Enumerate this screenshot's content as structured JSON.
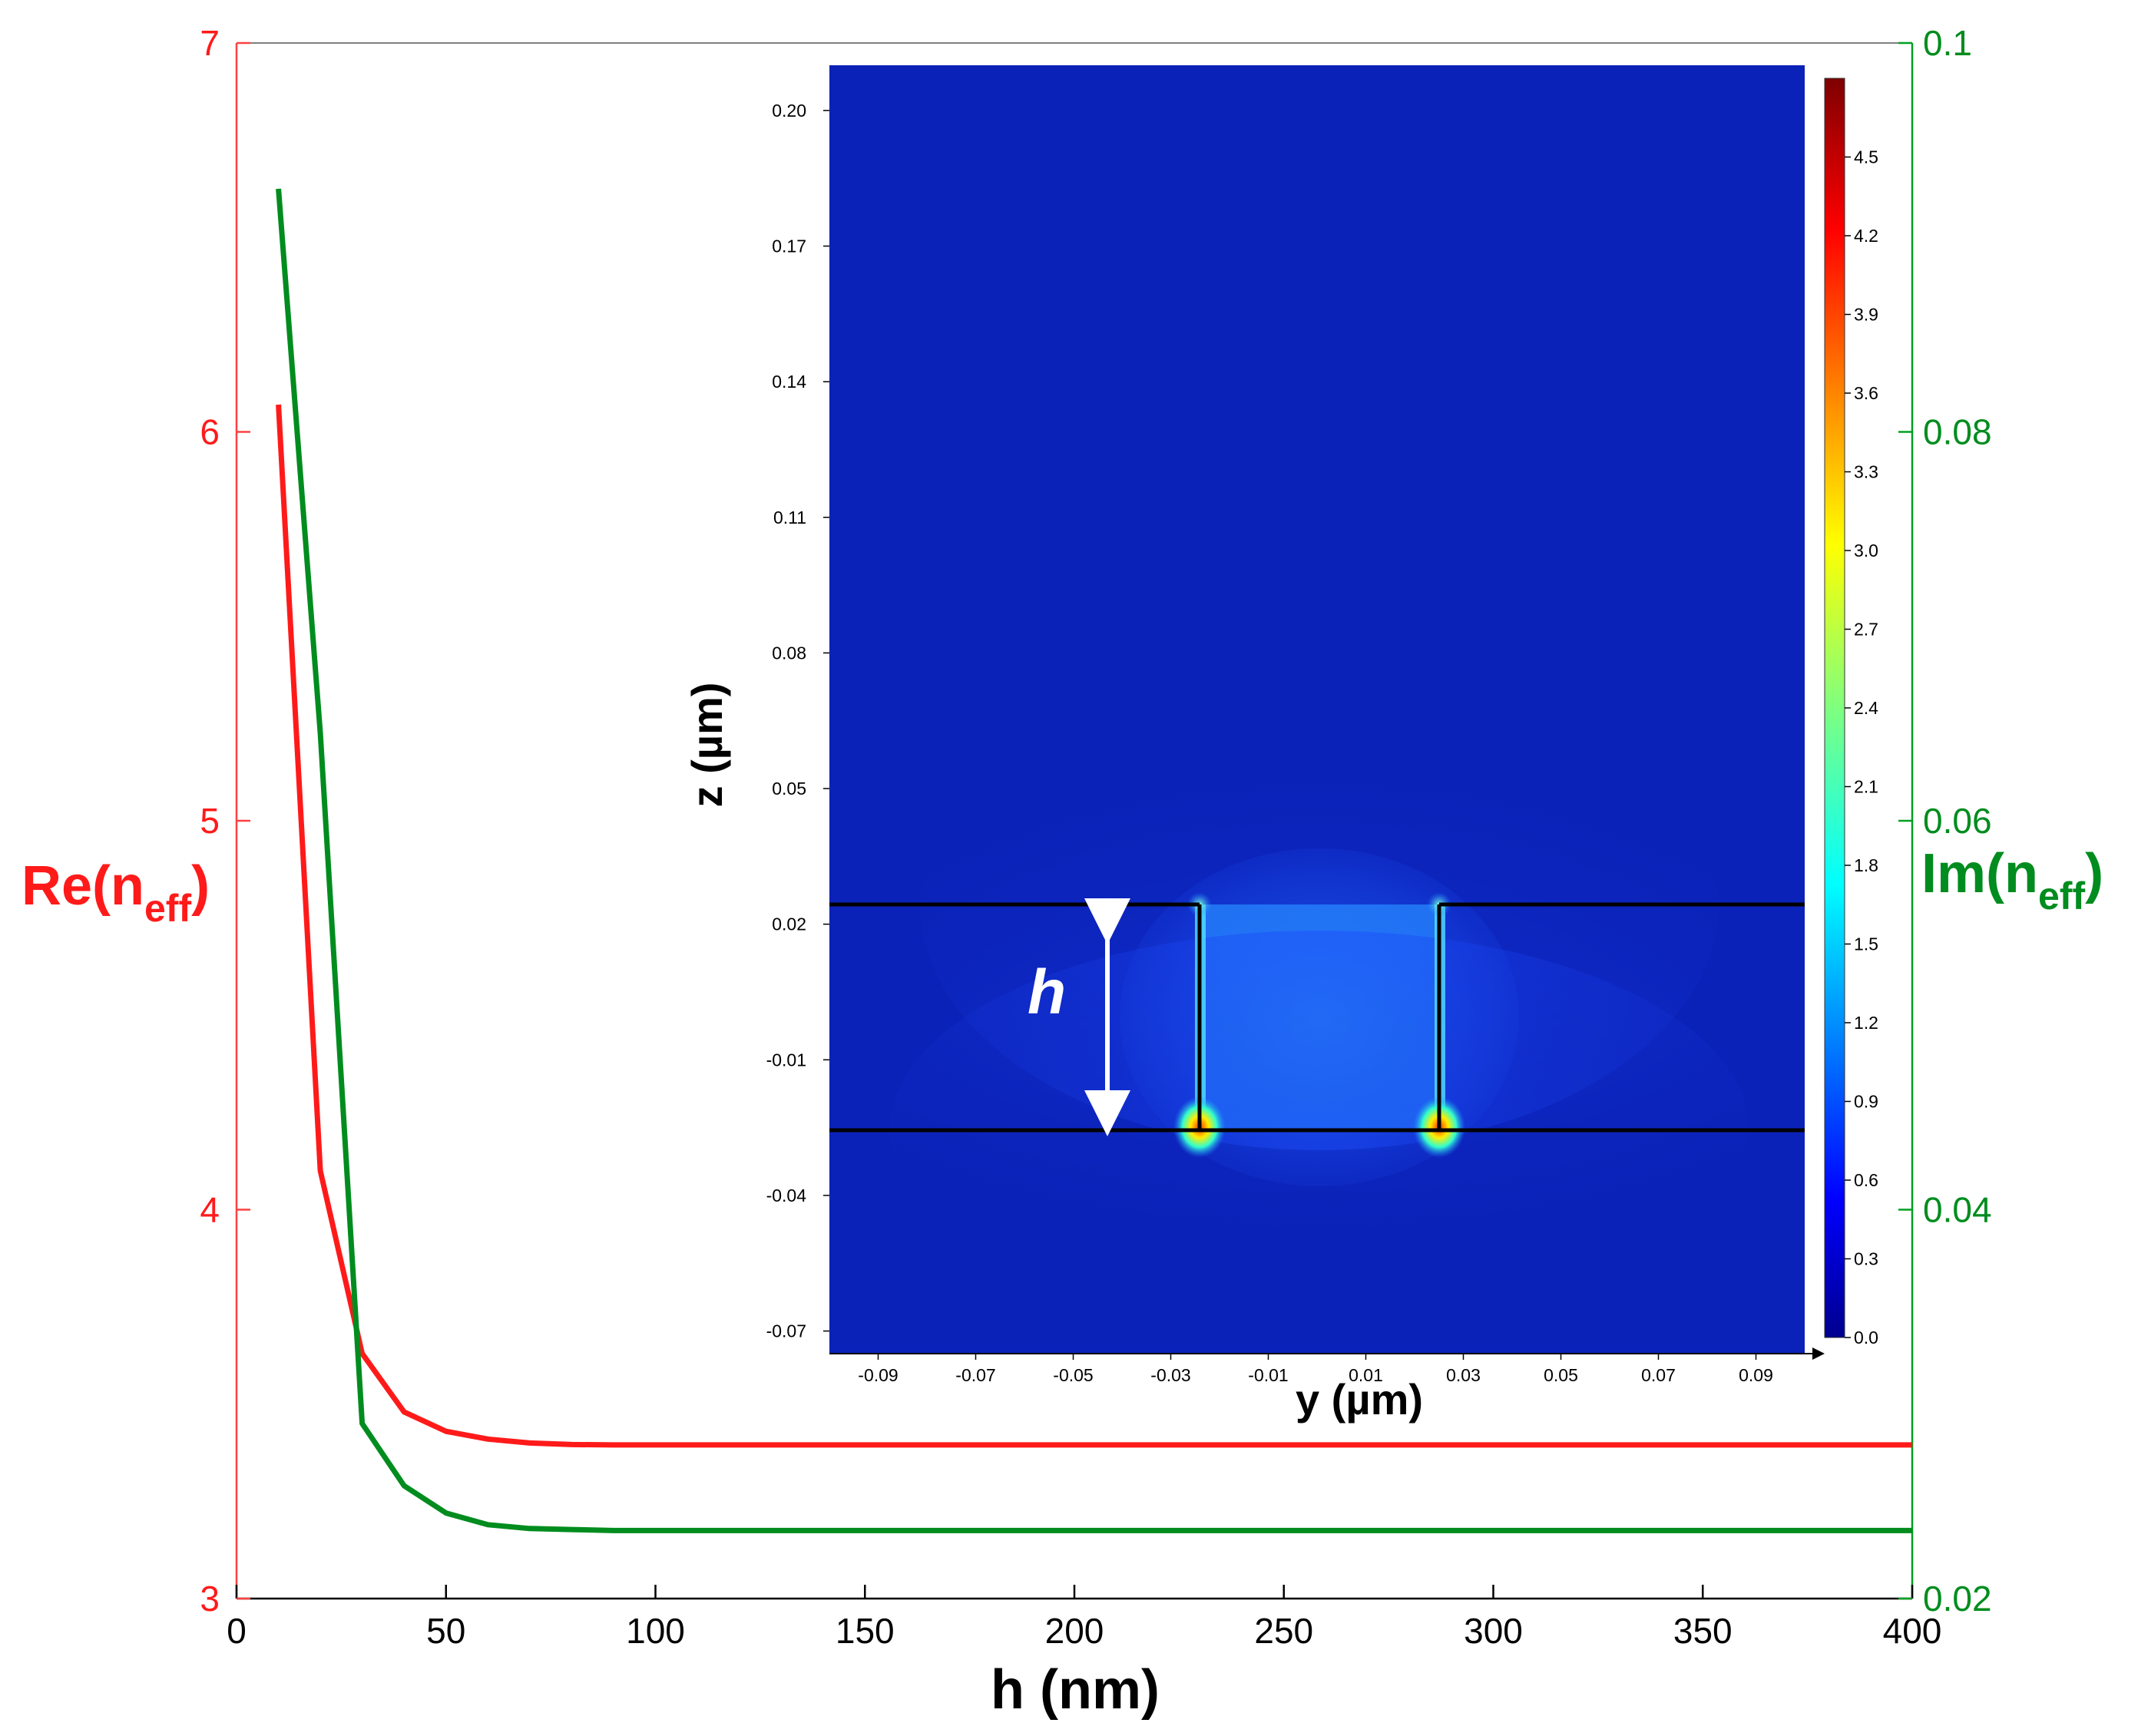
{
  "chart_data": [
    {
      "type": "line",
      "xlabel": "h (nm)",
      "ylabel_left": "Re(n",
      "ylabel_left_sub": "eff",
      "ylabel_left_close": ")",
      "ylabel_right": "Im(n",
      "ylabel_right_sub": "eff",
      "ylabel_right_close": ")",
      "xlim": [
        0,
        400
      ],
      "ylim_left": [
        3,
        7
      ],
      "ylim_right": [
        0.02,
        0.1
      ],
      "x_ticks": [
        "0",
        "50",
        "100",
        "150",
        "200",
        "250",
        "300",
        "350",
        "400"
      ],
      "y_left_ticks": [
        "3",
        "4",
        "5",
        "6",
        "7"
      ],
      "y_right_ticks": [
        "0.02",
        "0.04",
        "0.06",
        "0.08",
        "0.1"
      ],
      "colors": {
        "left": "#ff1a1a",
        "right": "#008c1e",
        "axis_left": "#ff4040",
        "axis_right": "#00a020"
      },
      "series": [
        {
          "name": "Re(neff)",
          "axis": "left",
          "color": "#ff1a1a",
          "x": [
            10,
            20,
            30,
            40,
            50,
            60,
            70,
            80,
            90,
            100,
            125,
            150,
            200,
            250,
            300,
            350,
            400
          ],
          "y": [
            6.07,
            4.1,
            3.63,
            3.48,
            3.43,
            3.41,
            3.4,
            3.396,
            3.395,
            3.395,
            3.395,
            3.395,
            3.395,
            3.395,
            3.395,
            3.395,
            3.395
          ]
        },
        {
          "name": "Im(neff)",
          "axis": "right",
          "color": "#008c1e",
          "x": [
            10,
            20,
            30,
            40,
            50,
            60,
            70,
            80,
            90,
            100,
            125,
            150,
            200,
            250,
            300,
            350,
            400
          ],
          "y": [
            0.0925,
            0.0645,
            0.029,
            0.0258,
            0.0244,
            0.0238,
            0.0236,
            0.02355,
            0.0235,
            0.0235,
            0.0235,
            0.0235,
            0.0235,
            0.0235,
            0.0235,
            0.0235,
            0.0235
          ]
        }
      ]
    },
    {
      "type": "heatmap",
      "title": "",
      "xlabel": "y (µm)",
      "ylabel": "z (µm)",
      "xlim": [
        -0.1,
        0.1
      ],
      "ylim": [
        -0.075,
        0.21
      ],
      "x_ticks": [
        "-0.09",
        "-0.07",
        "-0.05",
        "-0.03",
        "-0.01",
        "0.01",
        "0.03",
        "0.05",
        "0.07",
        "0.09"
      ],
      "y_ticks": [
        "0.20",
        "0.17",
        "0.14",
        "0.11",
        "0.08",
        "0.05",
        "0.02",
        "-0.01",
        "-0.04",
        "-0.07"
      ],
      "colorbar_ticks": [
        "4.5",
        "4.2",
        "3.9",
        "3.6",
        "3.3",
        "3.0",
        "2.7",
        "2.4",
        "2.1",
        "1.8",
        "1.5",
        "1.2",
        "0.9",
        "0.6",
        "0.3",
        "0.0"
      ],
      "colorbar_range": [
        0,
        4.8
      ],
      "slot": {
        "y_left": -0.025,
        "y_right": 0.025,
        "z_bottom": -0.025,
        "z_top": 0.025
      },
      "annotation": "h"
    }
  ]
}
